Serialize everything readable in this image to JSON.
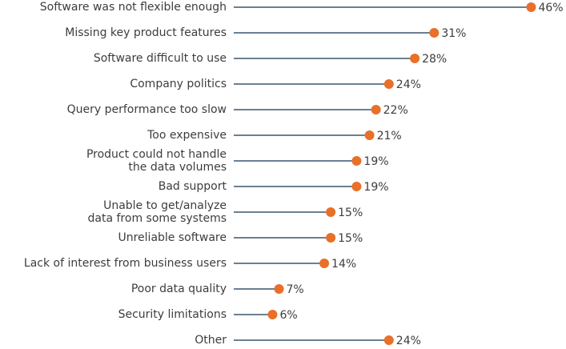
{
  "chart_data": {
    "type": "lollipop",
    "categories": [
      "Software was not flexible enough",
      "Missing key product features",
      "Software difficult to use",
      "Company politics",
      "Query performance too slow",
      "Too expensive",
      "Product could not handle\nthe data volumes",
      "Bad support",
      "Unable to get/analyze\ndata from some systems",
      "Unreliable software",
      "Lack of interest from business users",
      "Poor data quality",
      "Security limitations",
      "Other"
    ],
    "values": [
      46,
      31,
      28,
      24,
      22,
      21,
      19,
      19,
      15,
      15,
      14,
      7,
      6,
      24
    ],
    "value_labels": [
      "46%",
      "31%",
      "28%",
      "24%",
      "22%",
      "21%",
      "19%",
      "19%",
      "15%",
      "15%",
      "14%",
      "7%",
      "6%",
      "24%"
    ],
    "color": "#e8702a",
    "line_color": "#6b7f92"
  }
}
